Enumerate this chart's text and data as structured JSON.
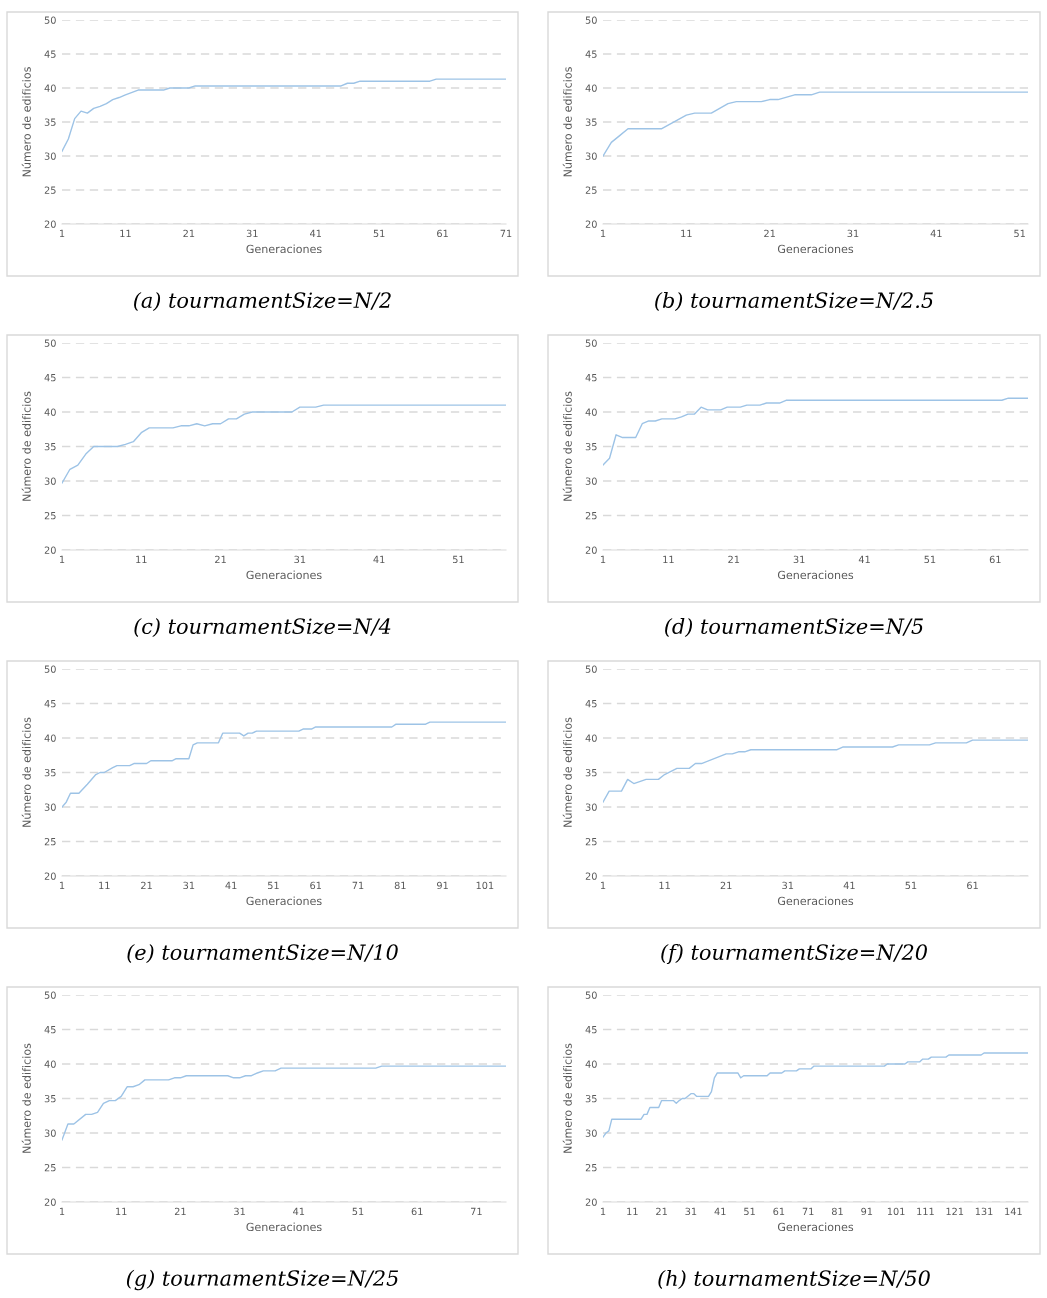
{
  "chart_data": [
    {
      "type": "line",
      "title": "(a) tournamentSize=N/2",
      "xlabel": "Generaciones",
      "ylabel": "Número de edificios",
      "xlim": [
        1,
        71
      ],
      "xticks": [
        1,
        11,
        21,
        31,
        41,
        51,
        61,
        71
      ],
      "ylim": [
        20,
        50
      ],
      "yticks": [
        20,
        25,
        30,
        35,
        40,
        45,
        50
      ],
      "grid": "y",
      "series": [
        {
          "color": "#9dc3e6",
          "x": [
            1,
            2,
            3,
            4,
            5,
            6,
            7,
            8,
            9,
            10,
            11,
            13,
            17,
            18,
            21,
            22,
            45,
            46,
            47,
            48,
            59,
            60,
            71
          ],
          "values": [
            30.7,
            32.5,
            35.5,
            36.6,
            36.3,
            37,
            37.3,
            37.7,
            38.3,
            38.6,
            39,
            39.7,
            39.7,
            40,
            40,
            40.3,
            40.3,
            40.7,
            40.7,
            41,
            41,
            41.3,
            41.3
          ]
        }
      ]
    },
    {
      "type": "line",
      "title": "(b) tournamentSize=N/2.5",
      "xlabel": "Generaciones",
      "ylabel": "Número de edificios",
      "xlim": [
        1,
        52
      ],
      "xticks": [
        1,
        11,
        21,
        31,
        41,
        51
      ],
      "ylim": [
        20,
        50
      ],
      "yticks": [
        20,
        25,
        30,
        35,
        40,
        45,
        50
      ],
      "grid": "y",
      "series": [
        {
          "color": "#9dc3e6",
          "x": [
            1,
            2,
            3,
            4,
            8,
            11,
            12,
            14,
            16,
            17,
            20,
            21,
            22,
            24,
            26,
            27,
            52
          ],
          "values": [
            30,
            32,
            33,
            34,
            34,
            36,
            36.3,
            36.3,
            37.7,
            38,
            38,
            38.3,
            38.3,
            39,
            39,
            39.4,
            39.4
          ]
        }
      ]
    },
    {
      "type": "line",
      "title": "(c) tournamentSize=N/4",
      "xlabel": "Generaciones",
      "ylabel": "Número de edificios",
      "xlim": [
        1,
        57
      ],
      "xticks": [
        1,
        11,
        21,
        31,
        41,
        51
      ],
      "ylim": [
        20,
        50
      ],
      "yticks": [
        20,
        25,
        30,
        35,
        40,
        45,
        50
      ],
      "grid": "y",
      "series": [
        {
          "color": "#9dc3e6",
          "x": [
            1,
            2,
            3,
            4,
            5,
            8,
            9,
            10,
            11,
            12,
            15,
            16,
            17,
            18,
            19,
            20,
            21,
            22,
            23,
            24,
            25,
            30,
            31,
            33,
            34,
            57
          ],
          "values": [
            29.7,
            31.7,
            32.3,
            33.9,
            35,
            35,
            35.3,
            35.7,
            37,
            37.7,
            37.7,
            38,
            38,
            38.3,
            38,
            38.3,
            38.3,
            39,
            39,
            39.7,
            40,
            40,
            40.7,
            40.7,
            41,
            41
          ]
        }
      ]
    },
    {
      "type": "line",
      "title": "(d) tournamentSize=N/5",
      "xlabel": "Generaciones",
      "ylabel": "Número de edificios",
      "xlim": [
        1,
        66
      ],
      "xticks": [
        1,
        11,
        21,
        31,
        41,
        51,
        61
      ],
      "ylim": [
        20,
        50
      ],
      "yticks": [
        20,
        25,
        30,
        35,
        40,
        45,
        50
      ],
      "grid": "y",
      "series": [
        {
          "color": "#9dc3e6",
          "x": [
            1,
            2,
            3,
            4,
            6,
            7,
            8,
            9,
            10,
            12,
            13,
            14,
            15,
            16,
            17,
            19,
            20,
            22,
            23,
            25,
            26,
            28,
            29,
            62,
            63,
            66
          ],
          "values": [
            32.3,
            33.3,
            36.7,
            36.3,
            36.3,
            38.3,
            38.7,
            38.7,
            39,
            39,
            39.3,
            39.7,
            39.7,
            40.7,
            40.3,
            40.3,
            40.7,
            40.7,
            41,
            41,
            41.3,
            41.3,
            41.7,
            41.7,
            42,
            42
          ]
        }
      ]
    },
    {
      "type": "line",
      "title": "(e) tournamentSize=N/10",
      "xlabel": "Generaciones",
      "ylabel": "Número de edificios",
      "xlim": [
        1,
        106
      ],
      "xticks": [
        1,
        11,
        21,
        31,
        41,
        51,
        61,
        71,
        81,
        91,
        101
      ],
      "ylim": [
        20,
        50
      ],
      "yticks": [
        20,
        25,
        30,
        35,
        40,
        45,
        50
      ],
      "grid": "y",
      "series": [
        {
          "color": "#9dc3e6",
          "x": [
            1,
            2,
            3,
            5,
            7,
            9,
            10,
            11,
            13,
            14,
            17,
            18,
            21,
            22,
            27,
            28,
            31,
            32,
            33,
            38,
            39,
            43,
            44,
            45,
            46,
            47,
            57,
            58,
            60,
            61,
            79,
            80,
            87,
            88,
            106
          ],
          "values": [
            30,
            30.7,
            32,
            32,
            33.3,
            34.7,
            35,
            35,
            35.7,
            36,
            36,
            36.3,
            36.3,
            36.7,
            36.7,
            37,
            37,
            39,
            39.3,
            39.3,
            40.7,
            40.7,
            40.3,
            40.7,
            40.7,
            41,
            41,
            41.3,
            41.3,
            41.6,
            41.6,
            42,
            42,
            42.3,
            42.3
          ]
        }
      ]
    },
    {
      "type": "line",
      "title": "(f) tournamentSize=N/20",
      "xlabel": "Generaciones",
      "ylabel": "Número de edificios",
      "xlim": [
        1,
        70
      ],
      "xticks": [
        1,
        11,
        21,
        31,
        41,
        51,
        61
      ],
      "ylim": [
        20,
        50
      ],
      "yticks": [
        20,
        25,
        30,
        35,
        40,
        45,
        50
      ],
      "grid": "y",
      "series": [
        {
          "color": "#9dc3e6",
          "x": [
            1,
            2,
            4,
            5,
            6,
            8,
            10,
            11,
            13,
            15,
            16,
            17,
            21,
            22,
            23,
            24,
            25,
            39,
            40,
            48,
            49,
            54,
            55,
            60,
            61,
            70
          ],
          "values": [
            30.7,
            32.3,
            32.3,
            34,
            33.4,
            34,
            34,
            34.7,
            35.6,
            35.6,
            36.3,
            36.3,
            37.7,
            37.7,
            38,
            38,
            38.3,
            38.3,
            38.7,
            38.7,
            39,
            39,
            39.3,
            39.3,
            39.7,
            39.7
          ]
        }
      ]
    },
    {
      "type": "line",
      "title": "(g) tournamentSize=N/25",
      "xlabel": "Generaciones",
      "ylabel": "Número de edificios",
      "xlim": [
        1,
        76
      ],
      "xticks": [
        1,
        11,
        21,
        31,
        41,
        51,
        61,
        71
      ],
      "ylim": [
        20,
        50
      ],
      "yticks": [
        20,
        25,
        30,
        35,
        40,
        45,
        50
      ],
      "grid": "y",
      "series": [
        {
          "color": "#9dc3e6",
          "x": [
            1,
            2,
            3,
            5,
            6,
            7,
            8,
            9,
            10,
            11,
            12,
            13,
            14,
            15,
            19,
            20,
            21,
            22,
            29,
            30,
            31,
            32,
            33,
            34,
            35,
            37,
            38,
            54,
            55,
            76
          ],
          "values": [
            29,
            31.3,
            31.3,
            32.7,
            32.7,
            33,
            34.3,
            34.7,
            34.7,
            35.3,
            36.7,
            36.7,
            37,
            37.7,
            37.7,
            38,
            38,
            38.3,
            38.3,
            38,
            38,
            38.3,
            38.3,
            38.7,
            39,
            39,
            39.4,
            39.4,
            39.7,
            39.7
          ]
        }
      ]
    },
    {
      "type": "line",
      "title": "(h) tournamentSize=N/50",
      "xlabel": "Generaciones",
      "ylabel": "Número de edificios",
      "xlim": [
        1,
        146
      ],
      "xticks": [
        1,
        11,
        21,
        31,
        41,
        51,
        61,
        71,
        81,
        91,
        101,
        111,
        121,
        131,
        141
      ],
      "ylim": [
        20,
        50
      ],
      "yticks": [
        20,
        25,
        30,
        35,
        40,
        45,
        50
      ],
      "grid": "y",
      "series": [
        {
          "color": "#9dc3e6",
          "x": [
            1,
            2,
            3,
            4,
            14,
            15,
            16,
            17,
            20,
            21,
            25,
            26,
            27,
            28,
            29,
            31,
            32,
            33,
            37,
            38,
            39,
            40,
            47,
            48,
            49,
            57,
            58,
            62,
            63,
            67,
            68,
            72,
            73,
            97,
            98,
            104,
            105,
            109,
            110,
            112,
            113,
            118,
            119,
            130,
            131,
            146
          ],
          "values": [
            29.4,
            30,
            30.3,
            32,
            32,
            32.7,
            32.7,
            33.7,
            33.7,
            34.7,
            34.7,
            34.3,
            34.7,
            35,
            35,
            35.7,
            35.7,
            35.3,
            35.3,
            36,
            38,
            38.7,
            38.7,
            38,
            38.3,
            38.3,
            38.7,
            38.7,
            39,
            39,
            39.3,
            39.3,
            39.7,
            39.7,
            40,
            40,
            40.3,
            40.3,
            40.7,
            40.7,
            41,
            41,
            41.3,
            41.3,
            41.6,
            41.6
          ]
        }
      ]
    }
  ]
}
